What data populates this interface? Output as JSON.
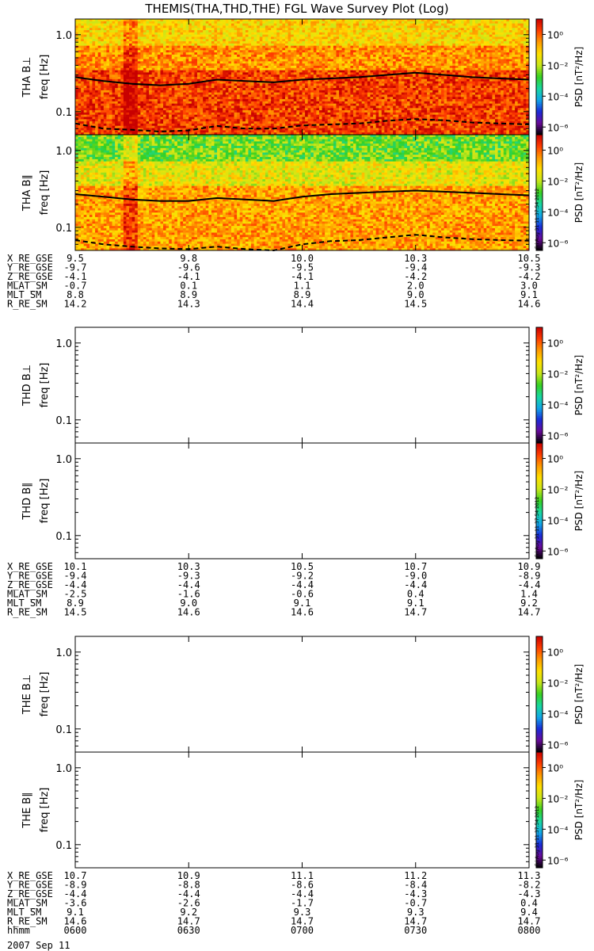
{
  "title": "THEMIS(THA,THD,THE) FGL Wave Survey Plot (Log)",
  "date": "2007 Sep 11",
  "stamp": "Fri Aug 31 11:37:54 2012",
  "colors": {
    "background": "#ffffff",
    "axis": "#000000",
    "colormap": [
      "#000000",
      "#6a0a9a",
      "#1a2bd8",
      "#12a7e8",
      "#18d8a0",
      "#36d020",
      "#c8e61a",
      "#ffe000",
      "#ff9a00",
      "#ff3c00",
      "#c80000"
    ]
  },
  "chart_data": [
    {
      "type": "heatmap",
      "probe": "THA",
      "panels": [
        {
          "ylabel": "THA B⊥",
          "freq_label": "freq [Hz]",
          "yscale": "log",
          "ylim": [
            0.05,
            1.6
          ],
          "yticks": [
            "1.0",
            "0.1"
          ],
          "ytick_values": [
            1.0,
            0.1
          ],
          "has_data": true,
          "psd_log_background_1to2hz": -1.2,
          "psd_log_peak_0p1to0p3hz": 0.3,
          "enhanced_band_center_hhmm": "0614",
          "solid_line_freq_hz": [
            0.28,
            0.25,
            0.23,
            0.22,
            0.23,
            0.26,
            0.25,
            0.24,
            0.26,
            0.27,
            0.28,
            0.3,
            0.32,
            0.3,
            0.28,
            0.27,
            0.26
          ],
          "dashed_line_freq_hz": [
            0.07,
            0.06,
            0.058,
            0.055,
            0.057,
            0.065,
            0.06,
            0.06,
            0.066,
            0.068,
            0.07,
            0.076,
            0.08,
            0.077,
            0.072,
            0.07,
            0.068
          ]
        },
        {
          "ylabel": "THA B∥",
          "freq_label": "freq [Hz]",
          "yscale": "log",
          "ylim": [
            0.05,
            1.6
          ],
          "yticks": [
            "1.0",
            "0.1"
          ],
          "ytick_values": [
            1.0,
            0.1
          ],
          "has_data": true,
          "psd_log_background_1to2hz": -2.5,
          "psd_log_peak_0p1to0p3hz": -0.6,
          "enhanced_band_center_hhmm": "0614",
          "solid_line_freq_hz": [
            0.27,
            0.25,
            0.23,
            0.22,
            0.22,
            0.24,
            0.23,
            0.22,
            0.25,
            0.27,
            0.28,
            0.29,
            0.3,
            0.29,
            0.28,
            0.27,
            0.26
          ],
          "dashed_line_freq_hz": [
            0.068,
            0.06,
            0.056,
            0.053,
            0.052,
            0.056,
            0.052,
            0.05,
            0.06,
            0.066,
            0.068,
            0.074,
            0.08,
            0.074,
            0.07,
            0.068,
            0.067
          ]
        }
      ],
      "colorbar": {
        "label": "PSD [nT²/Hz]",
        "scale": "log",
        "range": [
          -6.5,
          1
        ],
        "ticks": [
          "10⁰",
          "10⁻²",
          "10⁻⁴",
          "10⁻⁶"
        ],
        "tick_exponents": [
          0,
          -2,
          -4,
          -6
        ]
      },
      "ephemeris": {
        "rows": [
          {
            "name": "X_RE_GSE",
            "values": [
              "9.5",
              "9.8",
              "10.0",
              "10.3",
              "10.5"
            ]
          },
          {
            "name": "Y_RE_GSE",
            "values": [
              "-9.7",
              "-9.6",
              "-9.5",
              "-9.4",
              "-9.3"
            ]
          },
          {
            "name": "Z_RE_GSE",
            "values": [
              "-4.1",
              "-4.1",
              "-4.1",
              "-4.2",
              "-4.2"
            ]
          },
          {
            "name": "MLAT_SM",
            "values": [
              "-0.7",
              "0.1",
              "1.1",
              "2.0",
              "3.0"
            ]
          },
          {
            "name": "MLT_SM",
            "values": [
              "8.8",
              "8.9",
              "8.9",
              "9.0",
              "9.1"
            ]
          },
          {
            "name": "R_RE_SM",
            "values": [
              "14.2",
              "14.3",
              "14.4",
              "14.5",
              "14.6"
            ]
          }
        ]
      }
    },
    {
      "type": "heatmap",
      "probe": "THD",
      "panels": [
        {
          "ylabel": "THD B⊥",
          "freq_label": "freq [Hz]",
          "yscale": "log",
          "ylim": [
            0.05,
            1.6
          ],
          "yticks": [
            "1.0",
            "0.1"
          ],
          "ytick_values": [
            1.0,
            0.1
          ],
          "has_data": false
        },
        {
          "ylabel": "THD B∥",
          "freq_label": "freq [Hz]",
          "yscale": "log",
          "ylim": [
            0.05,
            1.6
          ],
          "yticks": [
            "1.0",
            "0.1"
          ],
          "ytick_values": [
            1.0,
            0.1
          ],
          "has_data": false
        }
      ],
      "colorbar": {
        "label": "PSD [nT²/Hz]",
        "scale": "log",
        "range": [
          -6.5,
          1
        ],
        "ticks": [
          "10⁰",
          "10⁻²",
          "10⁻⁴",
          "10⁻⁶"
        ],
        "tick_exponents": [
          0,
          -2,
          -4,
          -6
        ]
      },
      "ephemeris": {
        "rows": [
          {
            "name": "X_RE_GSE",
            "values": [
              "10.1",
              "10.3",
              "10.5",
              "10.7",
              "10.9"
            ]
          },
          {
            "name": "Y_RE_GSE",
            "values": [
              "-9.4",
              "-9.3",
              "-9.2",
              "-9.0",
              "-8.9"
            ]
          },
          {
            "name": "Z_RE_GSE",
            "values": [
              "-4.4",
              "-4.4",
              "-4.4",
              "-4.4",
              "-4.4"
            ]
          },
          {
            "name": "MLAT_SM",
            "values": [
              "-2.5",
              "-1.6",
              "-0.6",
              "0.4",
              "1.4"
            ]
          },
          {
            "name": "MLT_SM",
            "values": [
              "8.9",
              "9.0",
              "9.1",
              "9.1",
              "9.2"
            ]
          },
          {
            "name": "R_RE_SM",
            "values": [
              "14.5",
              "14.6",
              "14.6",
              "14.7",
              "14.7"
            ]
          }
        ]
      }
    },
    {
      "type": "heatmap",
      "probe": "THE",
      "panels": [
        {
          "ylabel": "THE B⊥",
          "freq_label": "freq [Hz]",
          "yscale": "log",
          "ylim": [
            0.05,
            1.6
          ],
          "yticks": [
            "1.0",
            "0.1"
          ],
          "ytick_values": [
            1.0,
            0.1
          ],
          "has_data": false
        },
        {
          "ylabel": "THE B∥",
          "freq_label": "freq [Hz]",
          "yscale": "log",
          "ylim": [
            0.05,
            1.6
          ],
          "yticks": [
            "1.0",
            "0.1"
          ],
          "ytick_values": [
            1.0,
            0.1
          ],
          "has_data": false
        }
      ],
      "colorbar": {
        "label": "PSD [nT²/Hz]",
        "scale": "log",
        "range": [
          -6.5,
          1
        ],
        "ticks": [
          "10⁰",
          "10⁻²",
          "10⁻⁴",
          "10⁻⁶"
        ],
        "tick_exponents": [
          0,
          -2,
          -4,
          -6
        ]
      },
      "ephemeris": {
        "rows": [
          {
            "name": "X_RE_GSE",
            "values": [
              "10.7",
              "10.9",
              "11.1",
              "11.2",
              "11.3"
            ]
          },
          {
            "name": "Y_RE_GSE",
            "values": [
              "-8.9",
              "-8.8",
              "-8.6",
              "-8.4",
              "-8.2"
            ]
          },
          {
            "name": "Z_RE_GSE",
            "values": [
              "-4.4",
              "-4.4",
              "-4.4",
              "-4.3",
              "-4.3"
            ]
          },
          {
            "name": "MLAT_SM",
            "values": [
              "-3.6",
              "-2.6",
              "-1.7",
              "-0.7",
              "0.4"
            ]
          },
          {
            "name": "MLT_SM",
            "values": [
              "9.1",
              "9.2",
              "9.3",
              "9.3",
              "9.4"
            ]
          },
          {
            "name": "R_RE_SM",
            "values": [
              "14.6",
              "14.7",
              "14.7",
              "14.7",
              "14.7"
            ]
          },
          {
            "name": "hhmm",
            "values": [
              "0600",
              "0630",
              "0700",
              "0730",
              "0800"
            ]
          }
        ]
      }
    }
  ]
}
